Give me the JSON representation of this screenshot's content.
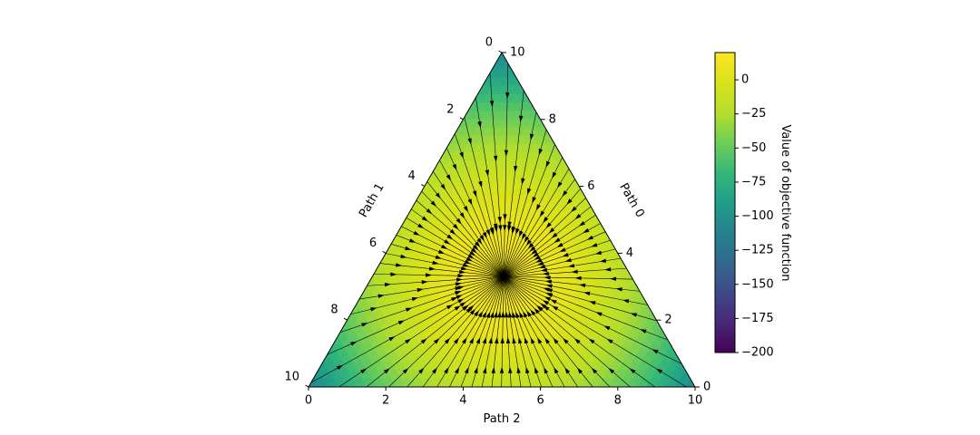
{
  "chart_data": {
    "type": "ternary-contour-streamplot",
    "axes": {
      "bottom": {
        "label": "Path 2",
        "range": [
          0,
          10
        ],
        "ticks": [
          0,
          2,
          4,
          6,
          8,
          10
        ],
        "tick_labels": [
          "0",
          "2",
          "4",
          "6",
          "8",
          "10"
        ]
      },
      "left": {
        "label": "Path 1",
        "range": [
          0,
          10
        ],
        "ticks": [
          0,
          2,
          4,
          6,
          8,
          10
        ],
        "tick_labels": [
          "0",
          "2",
          "4",
          "6",
          "8",
          "10"
        ]
      },
      "right": {
        "label": "Path 0",
        "range": [
          0,
          10
        ],
        "ticks": [
          0,
          2,
          4,
          6,
          8,
          10
        ],
        "tick_labels": [
          "0",
          "2",
          "4",
          "6",
          "8",
          "10"
        ]
      }
    },
    "total": 10,
    "optimum": {
      "path0": 3.3,
      "path1": 3.3,
      "path2": 3.4
    },
    "colorbar": {
      "label": "Value of objective function",
      "range": [
        -200,
        20
      ],
      "ticks": [
        0,
        -25,
        -50,
        -75,
        -100,
        -125,
        -150,
        -175,
        -200
      ],
      "tick_labels": [
        "0",
        "−25",
        "−50",
        "−75",
        "−100",
        "−125",
        "−150",
        "−175",
        "−200"
      ],
      "colormap": "viridis"
    },
    "field": {
      "max_value": 15,
      "corner_value": -110
    },
    "stream_lines": 72
  }
}
